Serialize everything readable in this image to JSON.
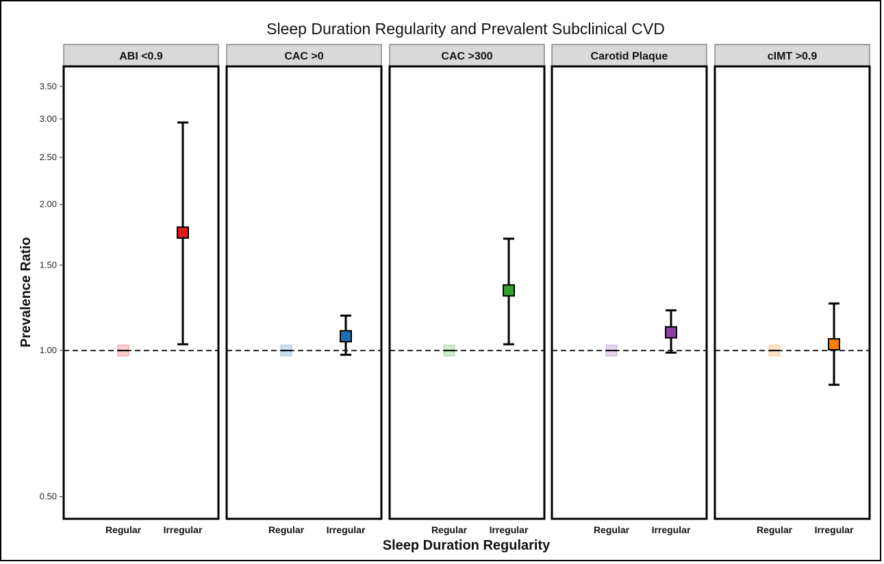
{
  "chart_data": {
    "type": "scatter",
    "title": "Sleep Duration Regularity and Prevalent Subclinical CVD",
    "xlabel": "Sleep Duration Regularity",
    "ylabel": "Prevalence Ratio",
    "y_scale": "log",
    "ylim": [
      0.45,
      3.85
    ],
    "y_ticks": [
      0.5,
      1.0,
      1.5,
      2.0,
      2.5,
      3.0,
      3.5
    ],
    "y_tick_labels": [
      "0.50",
      "1.00",
      "1.50",
      "2.00",
      "2.50",
      "3.00",
      "3.50"
    ],
    "reference_line": 1.0,
    "categories": [
      "Regular",
      "Irregular"
    ],
    "grid": false,
    "panels": [
      {
        "label": "ABI <0.9",
        "color": "#e31a1c",
        "points": [
          {
            "x": "Regular",
            "y": 1.0
          },
          {
            "x": "Irregular",
            "y": 1.75,
            "lower": 1.03,
            "upper": 2.95
          }
        ]
      },
      {
        "label": "CAC >0",
        "color": "#1f6fb4",
        "points": [
          {
            "x": "Regular",
            "y": 1.0
          },
          {
            "x": "Irregular",
            "y": 1.07,
            "lower": 0.98,
            "upper": 1.18
          }
        ]
      },
      {
        "label": "CAC >300",
        "color": "#33a02c",
        "points": [
          {
            "x": "Regular",
            "y": 1.0
          },
          {
            "x": "Irregular",
            "y": 1.33,
            "lower": 1.03,
            "upper": 1.7
          }
        ]
      },
      {
        "label": "Carotid Plaque",
        "color": "#8e3fa8",
        "points": [
          {
            "x": "Regular",
            "y": 1.0
          },
          {
            "x": "Irregular",
            "y": 1.09,
            "lower": 0.99,
            "upper": 1.21
          }
        ]
      },
      {
        "label": "cIMT >0.9",
        "color": "#ff7f00",
        "points": [
          {
            "x": "Regular",
            "y": 1.0
          },
          {
            "x": "Irregular",
            "y": 1.03,
            "lower": 0.85,
            "upper": 1.25
          }
        ]
      }
    ]
  }
}
